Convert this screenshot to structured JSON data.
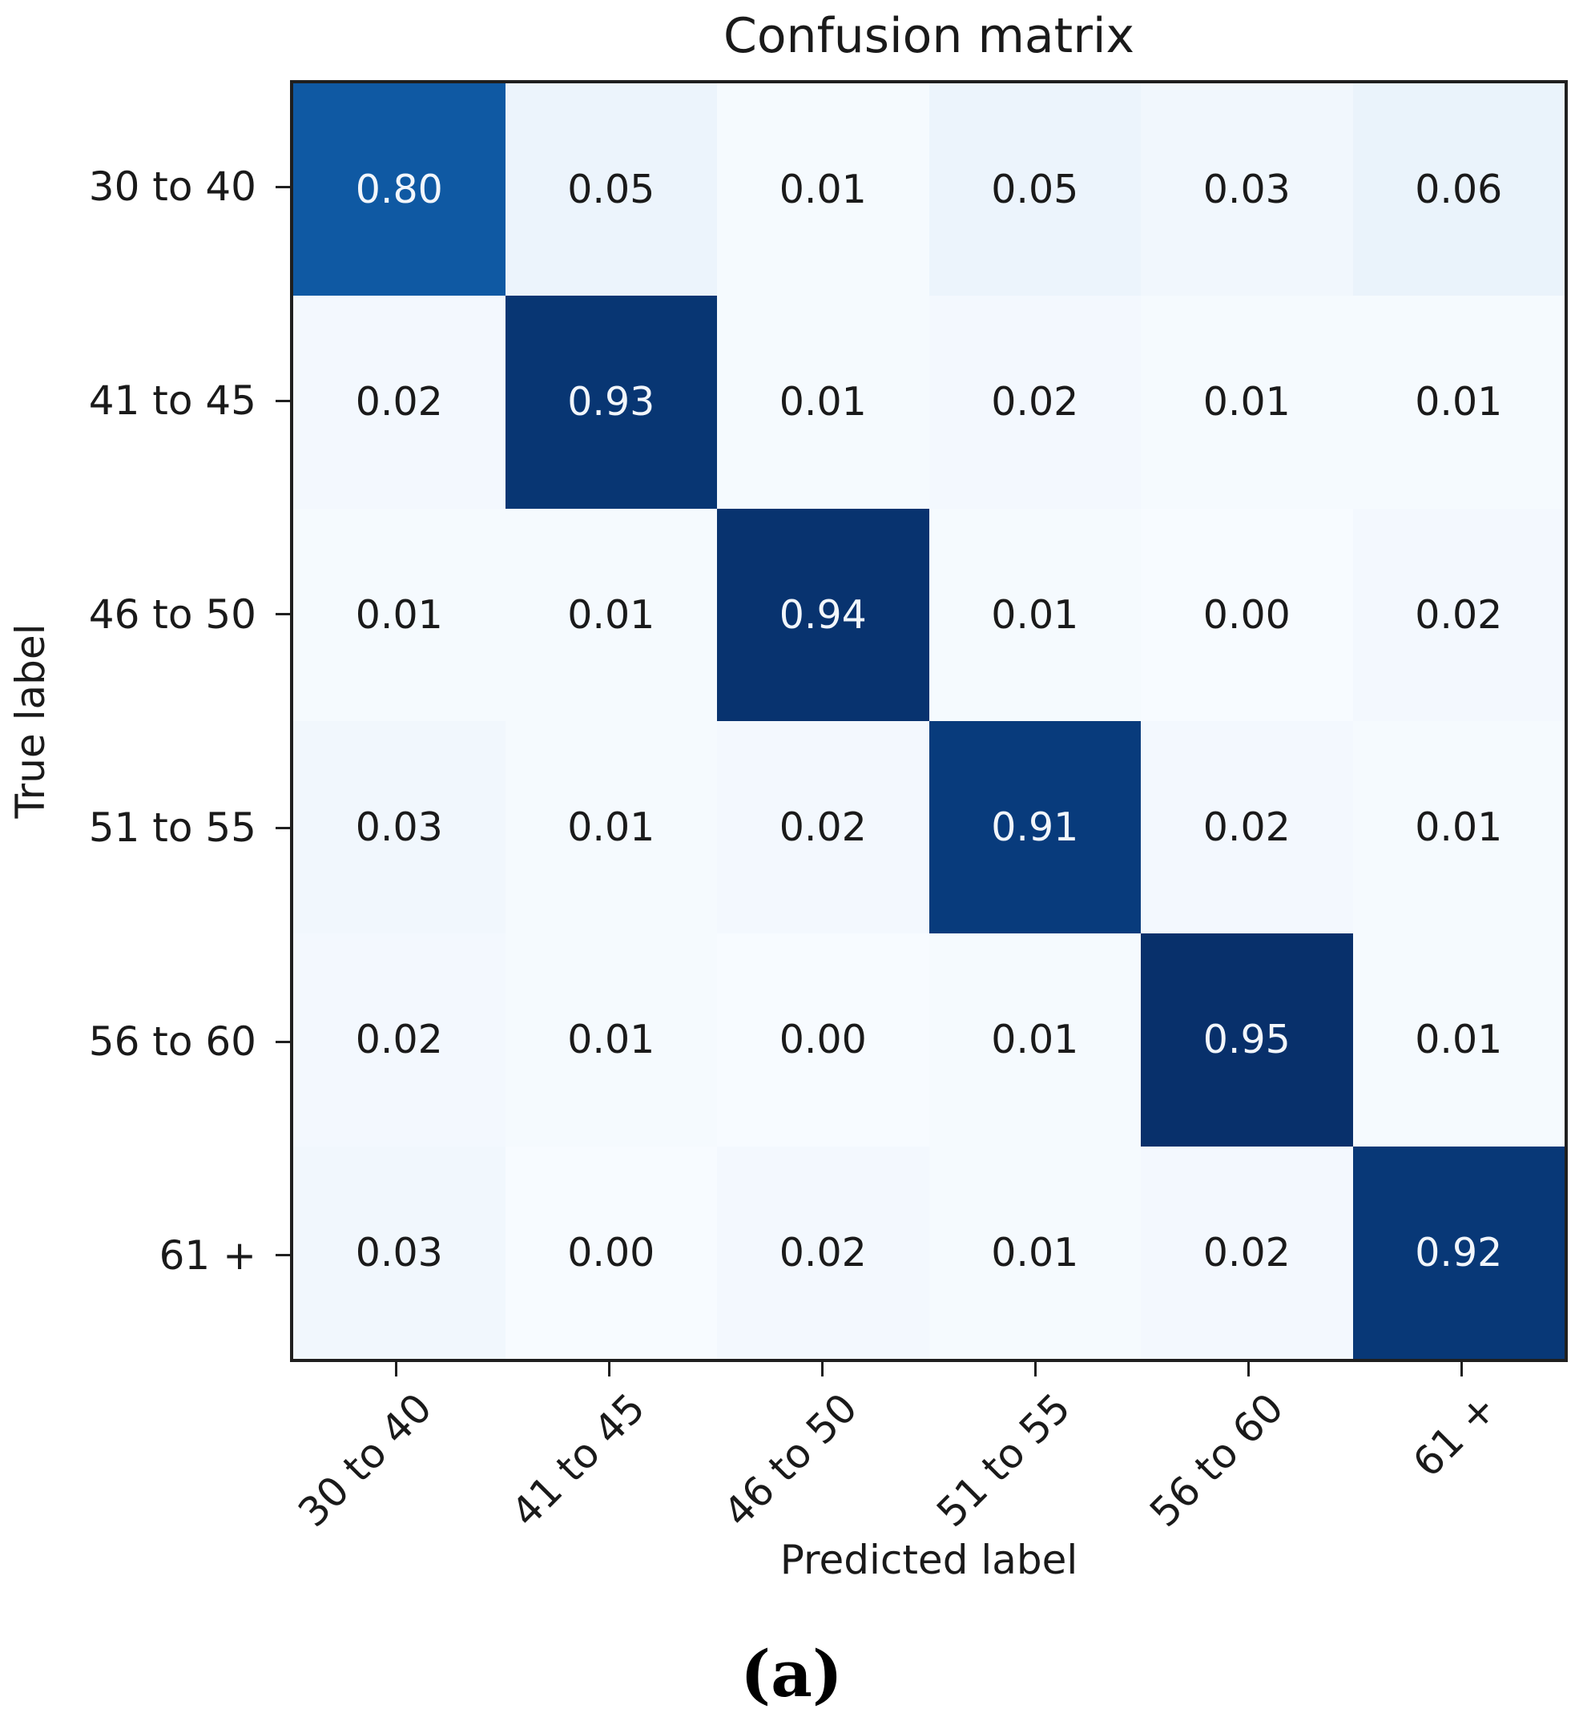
{
  "figure": {
    "title": "Confusion matrix",
    "xlabel": "Predicted label",
    "ylabel": "True label",
    "caption": "(a)"
  },
  "chart_data": {
    "type": "heatmap",
    "title": "Confusion matrix",
    "xlabel": "Predicted label",
    "ylabel": "True label",
    "x_categories": [
      "30 to 40",
      "41 to 45",
      "46 to 50",
      "51 to 55",
      "56 to 60",
      "61 +"
    ],
    "y_categories": [
      "30 to 40",
      "41 to 45",
      "46 to 50",
      "51 to 55",
      "56 to 60",
      "61 +"
    ],
    "rows": [
      [
        0.8,
        0.05,
        0.01,
        0.05,
        0.03,
        0.06
      ],
      [
        0.02,
        0.93,
        0.01,
        0.02,
        0.01,
        0.01
      ],
      [
        0.01,
        0.01,
        0.94,
        0.01,
        0.0,
        0.02
      ],
      [
        0.03,
        0.01,
        0.02,
        0.91,
        0.02,
        0.01
      ],
      [
        0.02,
        0.01,
        0.0,
        0.01,
        0.95,
        0.01
      ],
      [
        0.03,
        0.0,
        0.02,
        0.01,
        0.02,
        0.92
      ]
    ],
    "value_decimals": 2,
    "legend": "none",
    "grid": false,
    "colormap": {
      "name": "Blues",
      "stops": [
        "#f7fbff",
        "#deebf7",
        "#c6dbef",
        "#9ecae1",
        "#6baed6",
        "#4292c6",
        "#2171b5",
        "#08519c",
        "#08306b"
      ],
      "vmin": 0,
      "vmax": 0.95
    },
    "colors": {
      "cell_text_dark": "#1a1a1a",
      "cell_text_light": "#f2f6fb",
      "axis_border": "#1f1f1f"
    }
  }
}
